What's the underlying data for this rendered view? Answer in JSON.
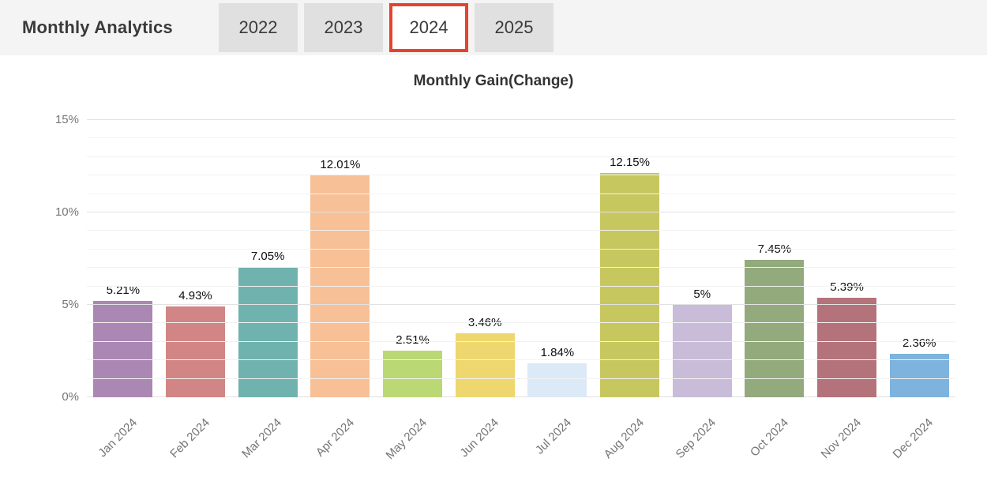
{
  "header": {
    "title": "Monthly Analytics",
    "tabs": [
      {
        "label": "2022",
        "selected": false
      },
      {
        "label": "2023",
        "selected": false
      },
      {
        "label": "2024",
        "selected": true
      },
      {
        "label": "2025",
        "selected": false
      }
    ],
    "selected_tab_border_color": "#e5432e"
  },
  "chart_data": {
    "type": "bar",
    "title": "Monthly Gain(Change)",
    "categories": [
      "Jan 2024",
      "Feb 2024",
      "Mar 2024",
      "Apr 2024",
      "May 2024",
      "Jun 2024",
      "Jul 2024",
      "Aug 2024",
      "Sep 2024",
      "Oct 2024",
      "Nov 2024",
      "Dec 2024"
    ],
    "values": [
      5.21,
      4.93,
      7.05,
      12.01,
      2.51,
      3.46,
      1.84,
      12.15,
      5,
      7.45,
      5.39,
      2.36
    ],
    "value_labels": [
      "5.21%",
      "4.93%",
      "7.05%",
      "12.01%",
      "2.51%",
      "3.46%",
      "1.84%",
      "12.15%",
      "5%",
      "7.45%",
      "5.39%",
      "2.36%"
    ],
    "bar_colors": [
      "#ab87b3",
      "#d18585",
      "#70b2ad",
      "#f7c096",
      "#bad874",
      "#eed76f",
      "#dce9f7",
      "#c7c75f",
      "#c8bcd9",
      "#93aa7d",
      "#b4737a",
      "#7db3dc"
    ],
    "xlabel": "",
    "ylabel": "",
    "ylim": [
      0,
      15
    ],
    "yticks": [
      0,
      5,
      10,
      15
    ],
    "ytick_labels": [
      "0%",
      "5%",
      "10%",
      "15%"
    ],
    "minor_grid_step": 1,
    "grid": true,
    "legend_position": "none"
  }
}
